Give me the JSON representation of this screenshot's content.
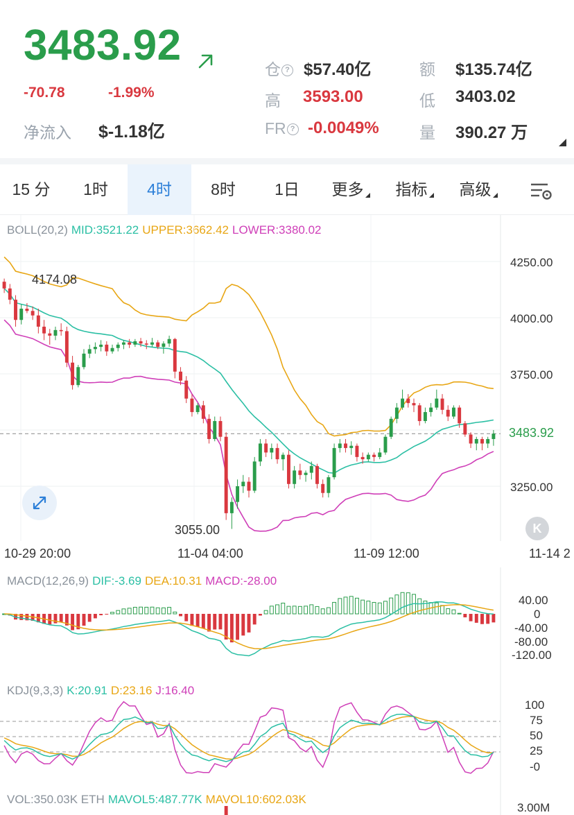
{
  "ticker": {
    "price": "3483.92",
    "change": "-70.78",
    "change_pct": "-1.99%",
    "netflow_label": "净流入",
    "netflow_value": "$-1.18亿"
  },
  "stats": {
    "open_interest_label": "仓",
    "open_interest_value": "$57.40亿",
    "amount_label": "额",
    "amount_value": "$135.74亿",
    "high_label": "高",
    "high_value": "3593.00",
    "low_label": "低",
    "low_value": "3403.02",
    "fr_label": "FR",
    "fr_value": "-0.0049%",
    "volume_label": "量",
    "volume_value": "390.27 万"
  },
  "tabs": [
    {
      "label": "15 分",
      "active": false
    },
    {
      "label": "1时",
      "active": false
    },
    {
      "label": "4时",
      "active": true
    },
    {
      "label": "8时",
      "active": false
    },
    {
      "label": "1日",
      "active": false
    },
    {
      "label": "更多",
      "active": false,
      "dropdown": true
    },
    {
      "label": "指标",
      "active": false,
      "dropdown": true
    },
    {
      "label": "高级",
      "active": false,
      "dropdown": true
    }
  ],
  "boll": {
    "name": "BOLL(20,2)",
    "mid": "MID:3521.22",
    "upper": "UPPER:3662.42",
    "lower": "LOWER:3380.02"
  },
  "price_axis": [
    "4250.00",
    "4000.00",
    "3750.00",
    "3483.92",
    "3250.00"
  ],
  "high_marker": "4174.08",
  "low_marker": "3055.00",
  "time_axis": [
    "10-29 20:00",
    "11-04 04:00",
    "11-09 12:00",
    "11-14 2"
  ],
  "macd": {
    "name": "MACD(12,26,9)",
    "dif": "DIF:-3.69",
    "dea": "DEA:10.31",
    "macd": "MACD:-28.00",
    "axis": [
      "40.00",
      "0",
      "-40.00",
      "-80.00",
      "-120.00"
    ]
  },
  "kdj": {
    "name": "KDJ(9,3,3)",
    "k": "K:20.91",
    "d": "D:23.16",
    "j": "J:16.40",
    "axis": [
      "100",
      "75",
      "50",
      "25",
      "-0"
    ]
  },
  "vol": {
    "name": "VOL:350.03K ETH",
    "mavol5": "MAVOL5:487.77K",
    "mavol10": "MAVOL10:602.03K",
    "axis_top": "3.00M"
  },
  "k_button": "K",
  "colors": {
    "up": "#2a9d4b",
    "down": "#d9383f",
    "mid": "#2bbfa4",
    "upper": "#e8a614",
    "lower": "#cf3fb8",
    "accent": "#2c7fd8"
  },
  "chart_data": {
    "type": "candlestick",
    "title": "",
    "y_range": [
      3050,
      4360
    ],
    "y_ticks": [
      4250,
      4000,
      3750,
      3483.92,
      3250
    ],
    "x_ticks": [
      "10-29 20:00",
      "11-04 04:00",
      "11-09 12:00",
      "11-14 2"
    ],
    "current_price": 3483.92,
    "candles_ohlc": [
      [
        4160,
        4174,
        4110,
        4130
      ],
      [
        4130,
        4150,
        4060,
        4080
      ],
      [
        4080,
        4100,
        3960,
        3990
      ],
      [
        3990,
        4060,
        3970,
        4040
      ],
      [
        4040,
        4065,
        4020,
        4030
      ],
      [
        4030,
        4050,
        3990,
        4010
      ],
      [
        4010,
        4040,
        3930,
        3960
      ],
      [
        3960,
        3990,
        3900,
        3930
      ],
      [
        3930,
        3950,
        3880,
        3920
      ],
      [
        3920,
        3960,
        3900,
        3945
      ],
      [
        3945,
        3975,
        3920,
        3940
      ],
      [
        3940,
        3960,
        3780,
        3800
      ],
      [
        3800,
        3830,
        3680,
        3700
      ],
      [
        3700,
        3790,
        3690,
        3780
      ],
      [
        3780,
        3860,
        3770,
        3840
      ],
      [
        3840,
        3880,
        3820,
        3860
      ],
      [
        3860,
        3890,
        3840,
        3870
      ],
      [
        3870,
        3900,
        3850,
        3880
      ],
      [
        3880,
        3895,
        3830,
        3850
      ],
      [
        3850,
        3880,
        3840,
        3865
      ],
      [
        3865,
        3890,
        3850,
        3880
      ],
      [
        3880,
        3900,
        3860,
        3890
      ],
      [
        3890,
        3905,
        3865,
        3880
      ],
      [
        3880,
        3905,
        3870,
        3895
      ],
      [
        3895,
        3910,
        3870,
        3885
      ],
      [
        3885,
        3900,
        3860,
        3880
      ],
      [
        3880,
        3910,
        3870,
        3890
      ],
      [
        3890,
        3900,
        3860,
        3870
      ],
      [
        3870,
        3895,
        3840,
        3885
      ],
      [
        3885,
        3920,
        3870,
        3905
      ],
      [
        3905,
        3910,
        3730,
        3760
      ],
      [
        3760,
        3780,
        3700,
        3720
      ],
      [
        3720,
        3740,
        3620,
        3640
      ],
      [
        3640,
        3660,
        3560,
        3580
      ],
      [
        3580,
        3620,
        3570,
        3610
      ],
      [
        3610,
        3630,
        3530,
        3550
      ],
      [
        3550,
        3570,
        3440,
        3460
      ],
      [
        3460,
        3560,
        3450,
        3540
      ],
      [
        3540,
        3560,
        3450,
        3470
      ],
      [
        3470,
        3490,
        3100,
        3130
      ],
      [
        3130,
        3200,
        3060,
        3180
      ],
      [
        3180,
        3280,
        3150,
        3250
      ],
      [
        3250,
        3300,
        3220,
        3270
      ],
      [
        3270,
        3290,
        3200,
        3230
      ],
      [
        3230,
        3380,
        3220,
        3360
      ],
      [
        3360,
        3460,
        3340,
        3440
      ],
      [
        3440,
        3460,
        3380,
        3400
      ],
      [
        3400,
        3440,
        3370,
        3420
      ],
      [
        3420,
        3440,
        3350,
        3370
      ],
      [
        3370,
        3400,
        3320,
        3390
      ],
      [
        3390,
        3410,
        3240,
        3260
      ],
      [
        3260,
        3340,
        3240,
        3320
      ],
      [
        3320,
        3350,
        3280,
        3300
      ],
      [
        3300,
        3320,
        3270,
        3310
      ],
      [
        3310,
        3360,
        3280,
        3340
      ],
      [
        3340,
        3350,
        3240,
        3260
      ],
      [
        3260,
        3280,
        3200,
        3220
      ],
      [
        3220,
        3300,
        3200,
        3290
      ],
      [
        3290,
        3440,
        3280,
        3420
      ],
      [
        3420,
        3460,
        3400,
        3440
      ],
      [
        3440,
        3460,
        3400,
        3420
      ],
      [
        3420,
        3450,
        3390,
        3430
      ],
      [
        3430,
        3440,
        3360,
        3380
      ],
      [
        3380,
        3400,
        3350,
        3370
      ],
      [
        3370,
        3400,
        3360,
        3390
      ],
      [
        3390,
        3400,
        3360,
        3380
      ],
      [
        3380,
        3420,
        3370,
        3400
      ],
      [
        3400,
        3480,
        3390,
        3470
      ],
      [
        3470,
        3560,
        3460,
        3550
      ],
      [
        3550,
        3620,
        3530,
        3600
      ],
      [
        3600,
        3680,
        3590,
        3640
      ],
      [
        3640,
        3660,
        3600,
        3620
      ],
      [
        3620,
        3640,
        3580,
        3610
      ],
      [
        3610,
        3620,
        3520,
        3540
      ],
      [
        3540,
        3600,
        3530,
        3580
      ],
      [
        3580,
        3620,
        3560,
        3600
      ],
      [
        3600,
        3680,
        3590,
        3640
      ],
      [
        3640,
        3660,
        3570,
        3590
      ],
      [
        3590,
        3610,
        3540,
        3560
      ],
      [
        3560,
        3610,
        3550,
        3600
      ],
      [
        3600,
        3610,
        3510,
        3530
      ],
      [
        3530,
        3540,
        3470,
        3480
      ],
      [
        3480,
        3490,
        3420,
        3440
      ],
      [
        3440,
        3470,
        3410,
        3460
      ],
      [
        3460,
        3470,
        3410,
        3440
      ],
      [
        3440,
        3470,
        3420,
        3460
      ],
      [
        3460,
        3500,
        3430,
        3484
      ]
    ]
  }
}
